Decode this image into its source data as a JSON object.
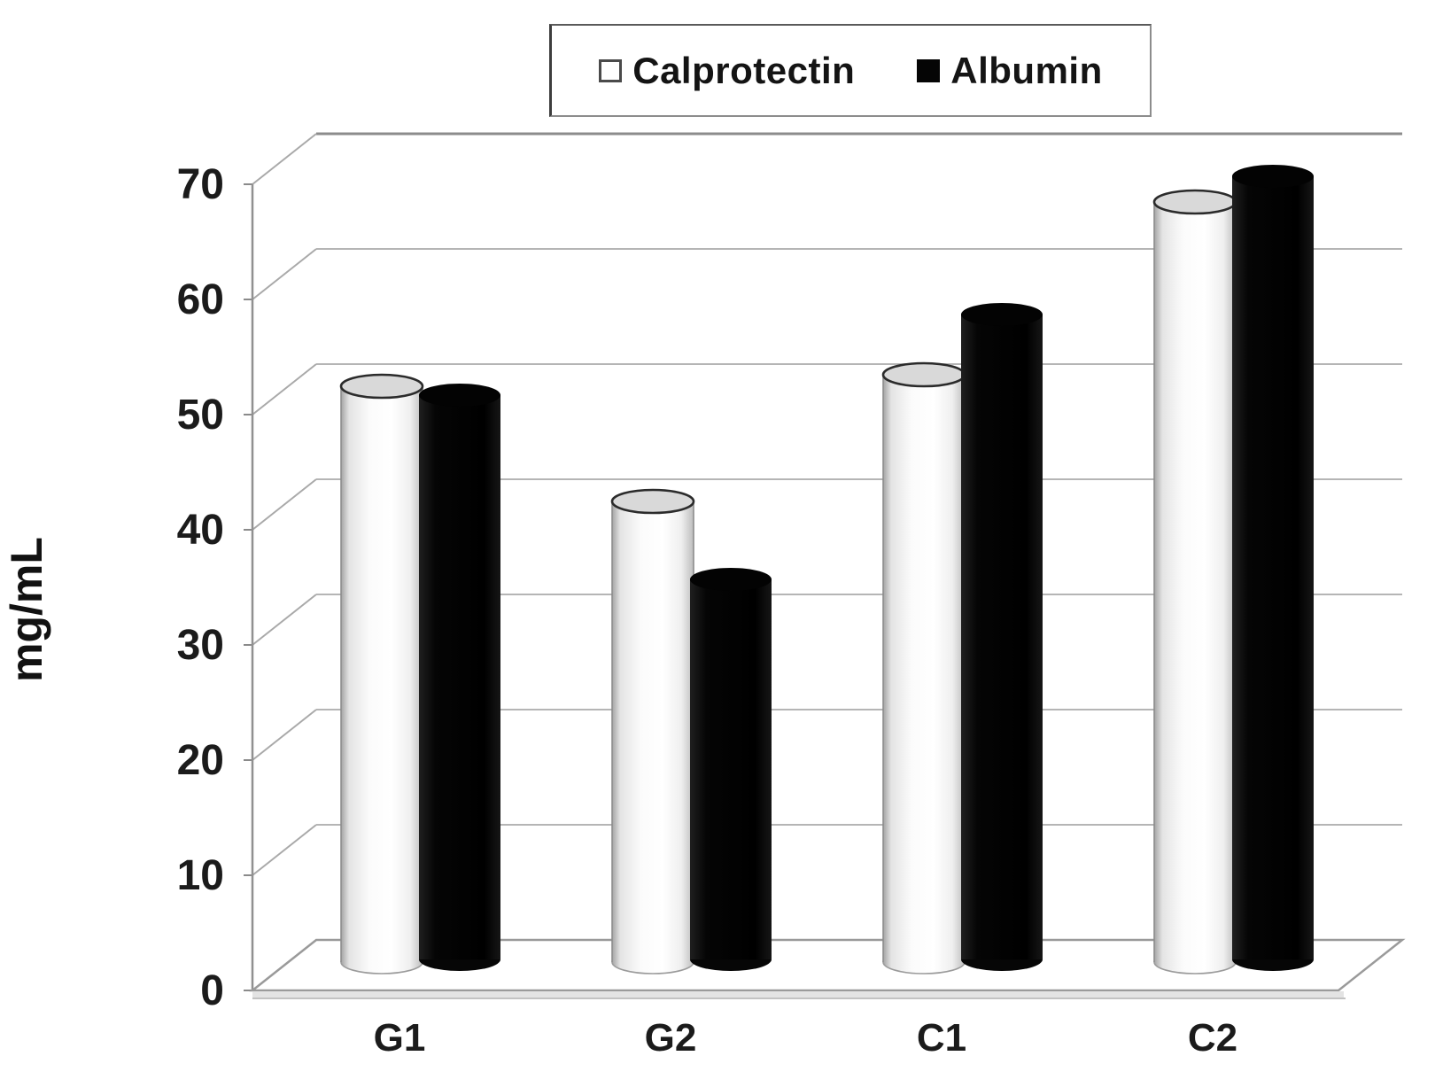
{
  "page": {
    "background": "#ffffff"
  },
  "legend": {
    "items": [
      {
        "label": "Calprotectin",
        "swatch": "white-outline-square"
      },
      {
        "label": "Albumin",
        "swatch": "black-filled-square"
      }
    ]
  },
  "chart_data": {
    "type": "bar",
    "subtype": "3d-cylinder",
    "title": "",
    "xlabel": "",
    "ylabel": "mg/mL",
    "ylim": [
      0,
      70
    ],
    "y_ticks": [
      0,
      10,
      20,
      30,
      40,
      50,
      60,
      70
    ],
    "grid": true,
    "legend_position": "top",
    "categories": [
      "G1",
      "G2",
      "C1",
      "C2"
    ],
    "series": [
      {
        "name": "Calprotectin",
        "color": "#ffffff",
        "values": [
          50,
          40,
          51,
          66
        ]
      },
      {
        "name": "Albumin",
        "color": "#0a0a0a",
        "values": [
          49,
          33,
          56,
          68
        ]
      }
    ],
    "colors": {
      "gridline": "#b5b5b5",
      "axis": "#909090",
      "tick_text": "#1b1b1b",
      "cylinder_top_cap": "#d9d9d9"
    }
  }
}
